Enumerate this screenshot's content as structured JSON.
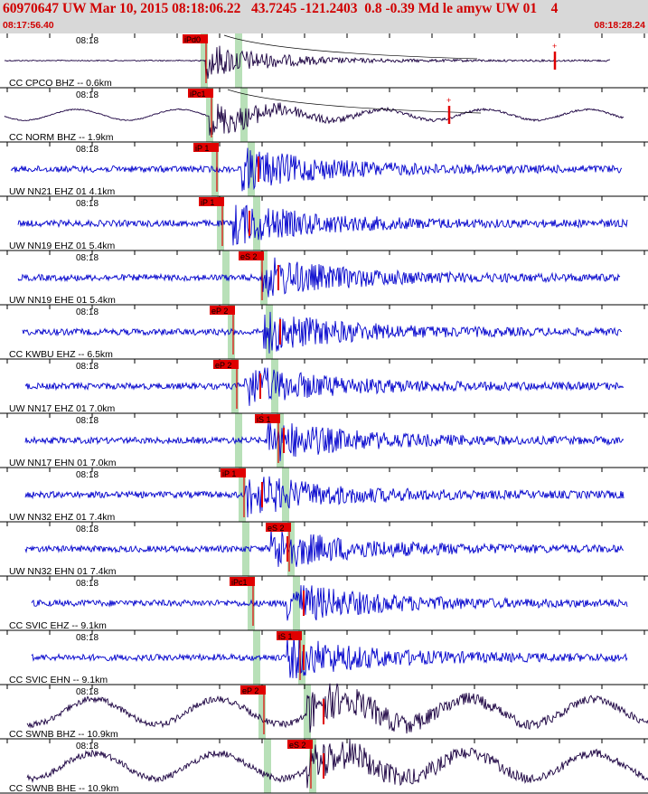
{
  "header": {
    "title": "60970647 UW Mar 10, 2015 08:18:06.22   43.7245 -121.2403  0.8 -0.39 Md le amyw UW 01    4",
    "time_start": "08:17:56.40",
    "time_end": "08:18:28.24",
    "background": "#d8d8d8",
    "text_color": "#d00000"
  },
  "tick_label": "08:18",
  "colors": {
    "blue_trace": "#0000cc",
    "dark_trace": "#1a0040",
    "pick": "#e00000",
    "window": "#b8e0b8"
  },
  "traces": [
    {
      "label": "CC CPCO BHZ -- 0.6km",
      "color": "dark",
      "pick": "iPd0",
      "extra": ""
    },
    {
      "label": "CC NORM BHZ -- 1.9km",
      "color": "dark",
      "pick": "iPc1",
      "extra": ""
    },
    {
      "label": "UW NN21 EHZ 01 4.1km",
      "color": "blue",
      "pick": "iP 1",
      "extra": ""
    },
    {
      "label": "UW NN19 EHZ 01 5.4km",
      "color": "blue",
      "pick": "iP 1",
      "extra": ""
    },
    {
      "label": "UW NN19 EHE 01 5.4km",
      "color": "blue",
      "pick": "",
      "extra": "eS 2"
    },
    {
      "label": "CC KWBU EHZ -- 6.5km",
      "color": "blue",
      "pick": "eP 2",
      "extra": ""
    },
    {
      "label": "UW NN17 EHZ 01 7.0km",
      "color": "blue",
      "pick": "eP 2",
      "extra": ""
    },
    {
      "label": "UW NN17 EHN 01 7.0km",
      "color": "blue",
      "pick": "",
      "extra": "iS 1"
    },
    {
      "label": "UW NN32 EHZ 01 7.4km",
      "color": "blue",
      "pick": "iP 1",
      "extra": ""
    },
    {
      "label": "UW NN32 EHN 01 7.4km",
      "color": "blue",
      "pick": "",
      "extra": "eS 2"
    },
    {
      "label": "CC SVIC EHZ -- 9.1km",
      "color": "blue",
      "pick": "iPc1",
      "extra": ""
    },
    {
      "label": "CC SVIC EHN -- 9.1km",
      "color": "blue",
      "pick": "",
      "extra": "iS 1"
    },
    {
      "label": "CC SWNB BHZ -- 10.9km",
      "color": "dark",
      "pick": "eP 2",
      "extra": ""
    },
    {
      "label": "CC SWNB BHE -- 10.9km",
      "color": "dark",
      "pick": "",
      "extra": "eS 2"
    }
  ]
}
